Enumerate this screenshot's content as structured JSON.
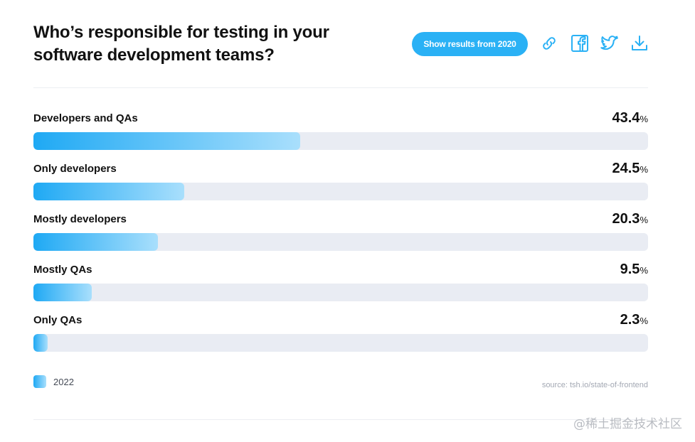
{
  "title": "Who’s responsible for testing in your\nsoftware development teams?",
  "toolbar": {
    "show_results_label": "Show results from 2020",
    "icons": [
      "link-icon",
      "facebook-icon",
      "twitter-icon",
      "download-icon"
    ]
  },
  "colors": {
    "bar_start": "#1fa9f4",
    "bar_end": "#a9dffc",
    "track": "#e9ecf3",
    "button": "#2ab1f5"
  },
  "chart_data": {
    "type": "bar",
    "orientation": "horizontal",
    "title": "Who’s responsible for testing in your software development teams?",
    "categories": [
      "Developers and QAs",
      "Only developers",
      "Mostly developers",
      "Mostly QAs",
      "Only QAs"
    ],
    "series": [
      {
        "name": "2022",
        "values": [
          43.4,
          24.5,
          20.3,
          9.5,
          2.3
        ]
      }
    ],
    "value_suffix": "%",
    "xlim": [
      0,
      100
    ],
    "legend": "bottom-left"
  },
  "legend": {
    "label": "2022"
  },
  "source": "source: tsh.io/state-of-frontend",
  "watermark": "@稀土掘金技术社区"
}
